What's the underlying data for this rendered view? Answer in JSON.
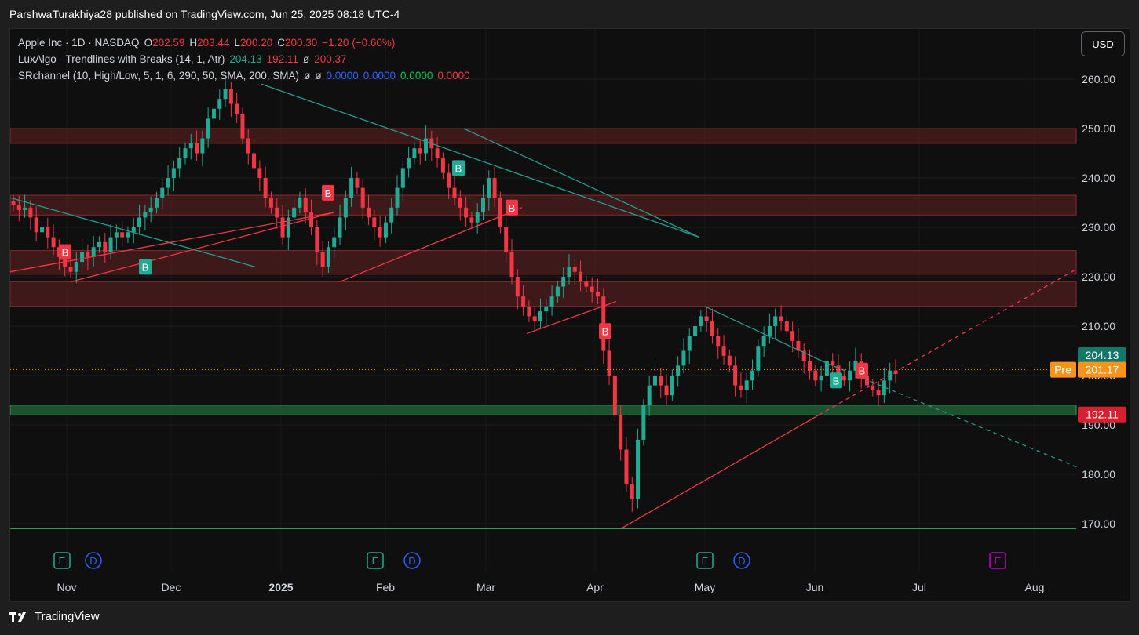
{
  "publish_line": "ParshwaTurakhiya28 published on TradingView.com, Jun 25, 2025 08:18 UTC-4",
  "legend": {
    "line1": {
      "symbol": "Apple Inc · 1D · NASDAQ",
      "o_label": "O",
      "o": "202.59",
      "h_label": "H",
      "h": "203.44",
      "l_label": "L",
      "l": "200.20",
      "c_label": "C",
      "c": "200.30",
      "chg": "−1.20 (−0.60%)"
    },
    "line2": {
      "name": "LuxAlgo - Trendlines with Breaks (14, 1, Atr)",
      "v1": "204.13",
      "v2": "192.11",
      "sym": "ø",
      "v3": "200.37"
    },
    "line3": {
      "name": "SRchannel (10, High/Low, 5, 1, 6, 290, 50, SMA, 200, SMA)",
      "sym1": "ø",
      "sym2": "ø",
      "v1": "0.0000",
      "v2": "0.0000",
      "v3": "0.0000",
      "v4": "0.0000"
    }
  },
  "currency_button": "USD",
  "price_axis": {
    "ticks": [
      "260.00",
      "250.00",
      "240.00",
      "230.00",
      "220.00",
      "210.00",
      "200.00",
      "190.00",
      "180.00",
      "170.00"
    ]
  },
  "price_tags": {
    "upper": "204.13",
    "pre_label": "Pre",
    "pre": "201.17",
    "lower": "192.11"
  },
  "time_axis": {
    "labels": [
      "Nov",
      "Dec",
      "2025",
      "Feb",
      "Mar",
      "Apr",
      "May",
      "Jun",
      "Jul",
      "Aug"
    ]
  },
  "event_markers": [
    {
      "letter": "E"
    },
    {
      "letter": "D"
    },
    {
      "letter": "E"
    },
    {
      "letter": "D"
    },
    {
      "letter": "E"
    },
    {
      "letter": "D"
    },
    {
      "letter": "E"
    }
  ],
  "break_label": "B",
  "footer_brand": "TradingView",
  "colors": {
    "up": "#22ab94",
    "down": "#f23645",
    "zone_red": "#5c1f22",
    "zone_green": "#1f6b3a",
    "trend_res": "#1f9e8e",
    "trend_sup": "#f23645",
    "pre": "#f7931a",
    "grid": "#1e1e1e"
  },
  "chart_data": {
    "type": "candlestick",
    "symbol": "Apple Inc · 1D · NASDAQ",
    "ylim": [
      164,
      268
    ],
    "sr_zones": [
      {
        "low": 247,
        "high": 250,
        "color": "red"
      },
      {
        "low": 232.5,
        "high": 236.5,
        "color": "red"
      },
      {
        "low": 220.5,
        "high": 225.3,
        "color": "red"
      },
      {
        "low": 214,
        "high": 219
      },
      {
        "low": 192,
        "high": 194,
        "color": "green"
      }
    ],
    "support_line": 169,
    "pre_market_price": 201.17,
    "candles_close": [
      234.5,
      233.5,
      234,
      232,
      229,
      230,
      228,
      226,
      224,
      222,
      221,
      223,
      225,
      224,
      226,
      227,
      225,
      228,
      229,
      228,
      229,
      230,
      232,
      233,
      234,
      236,
      238,
      240,
      242,
      244,
      246,
      247,
      245,
      248,
      252,
      254,
      256,
      258,
      255,
      253,
      248,
      245,
      242,
      240,
      236,
      234,
      232,
      228,
      232,
      234,
      236,
      233,
      230,
      225,
      222,
      226,
      228,
      232,
      236,
      240,
      238,
      234,
      232,
      230,
      228,
      231,
      234,
      238,
      242,
      244,
      246,
      245,
      248,
      246,
      244,
      241,
      238,
      236,
      234,
      232,
      231,
      233,
      236,
      240,
      236,
      230,
      225,
      220,
      216,
      214,
      212,
      211,
      213,
      214,
      216,
      218,
      220,
      222,
      221,
      219,
      218,
      217,
      216,
      205,
      200,
      192,
      185,
      178,
      175,
      187,
      194,
      198,
      200,
      198,
      196,
      200,
      202,
      205,
      208,
      210,
      212,
      211,
      208,
      206,
      204,
      202,
      198,
      197,
      199,
      201,
      206,
      208,
      210,
      212,
      211,
      209,
      207,
      205,
      203,
      201,
      199,
      200,
      203,
      202,
      200,
      199,
      201,
      203,
      200,
      198,
      197,
      196,
      199,
      201,
      200.3
    ]
  }
}
